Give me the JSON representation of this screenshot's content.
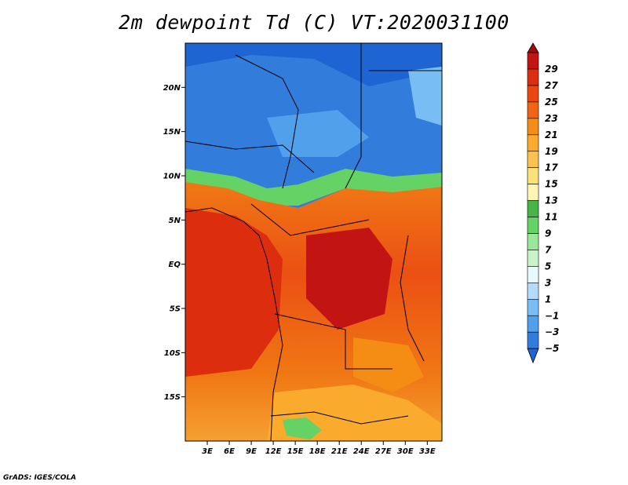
{
  "title": "2m dewpoint Td (C) VT:2020031100",
  "credit": "GrADS: IGES/COLA",
  "map": {
    "lon_range": [
      0,
      35
    ],
    "lat_range": [
      -20,
      25
    ],
    "lat_ticks": [
      {
        "value": 20,
        "label": "20N"
      },
      {
        "value": 15,
        "label": "15N"
      },
      {
        "value": 10,
        "label": "10N"
      },
      {
        "value": 5,
        "label": "5N"
      },
      {
        "value": 0,
        "label": "EQ"
      },
      {
        "value": -5,
        "label": "5S"
      },
      {
        "value": -10,
        "label": "10S"
      },
      {
        "value": -15,
        "label": "15S"
      }
    ],
    "lon_ticks": [
      {
        "value": 3,
        "label": "3E"
      },
      {
        "value": 6,
        "label": "6E"
      },
      {
        "value": 9,
        "label": "9E"
      },
      {
        "value": 12,
        "label": "12E"
      },
      {
        "value": 15,
        "label": "15E"
      },
      {
        "value": 18,
        "label": "18E"
      },
      {
        "value": 21,
        "label": "21E"
      },
      {
        "value": 24,
        "label": "24E"
      },
      {
        "value": 27,
        "label": "27E"
      },
      {
        "value": 30,
        "label": "30E"
      },
      {
        "value": 33,
        "label": "33E"
      }
    ]
  },
  "colorbar": {
    "labels": [
      "29",
      "27",
      "25",
      "23",
      "21",
      "19",
      "17",
      "15",
      "13",
      "11",
      "9",
      "7",
      "5",
      "3",
      "1",
      "−1",
      "−3",
      "−5"
    ],
    "colors": [
      "#a50a0a",
      "#c31414",
      "#dc2d0f",
      "#eb460f",
      "#f06414",
      "#f58c14",
      "#faaa2d",
      "#fac350",
      "#fae178",
      "#fff5b4",
      "#46b446",
      "#64d264",
      "#9be69b",
      "#c8f5c8",
      "#e6faff",
      "#b4dcfa",
      "#78bef5",
      "#50a0eb",
      "#327ddc",
      "#1e64d2"
    ]
  }
}
